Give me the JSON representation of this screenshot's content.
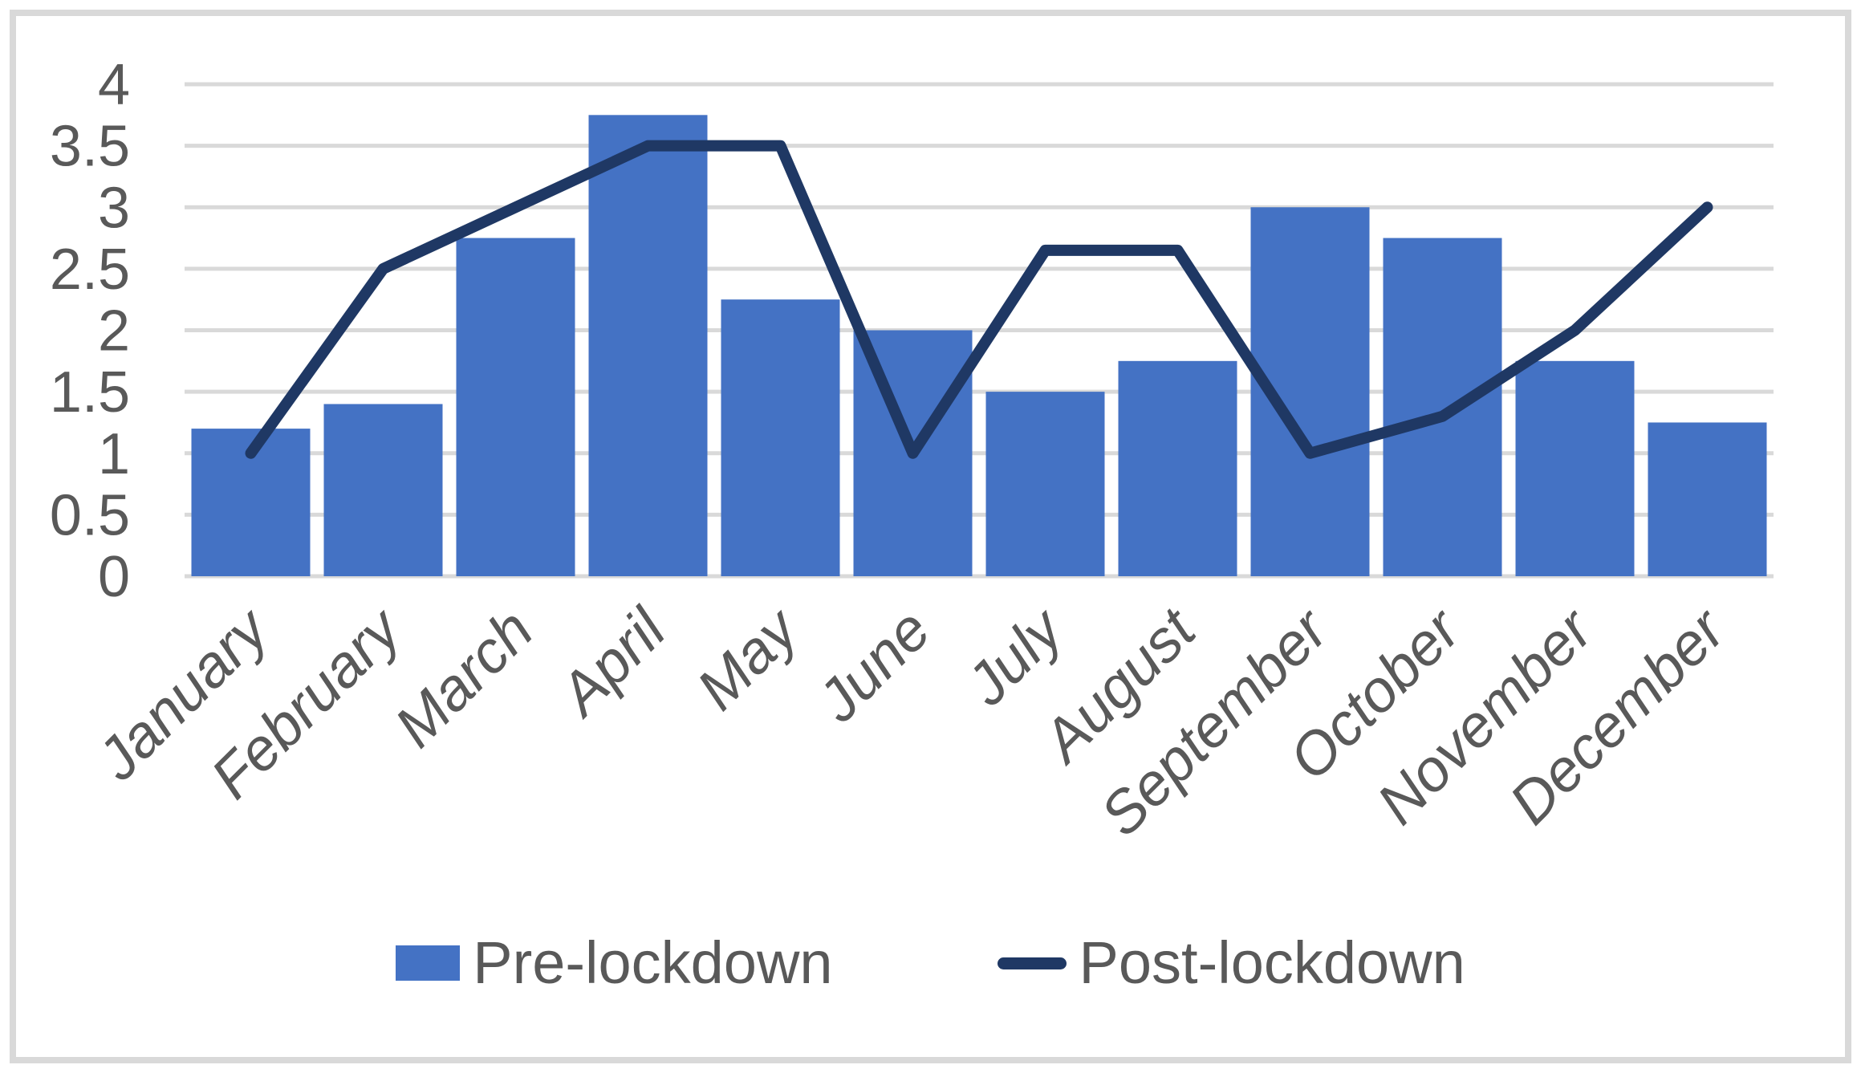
{
  "chart_data": {
    "type": "bar",
    "subtype": "bar-line-combo",
    "title": "",
    "xlabel": "",
    "ylabel": "",
    "categories": [
      "January",
      "February",
      "March",
      "April",
      "May",
      "June",
      "July",
      "August",
      "September",
      "October",
      "November",
      "December"
    ],
    "series": [
      {
        "name": "Pre-lockdown",
        "type": "bar",
        "color": "#4472C4",
        "values": [
          1.2,
          1.4,
          2.75,
          3.75,
          2.25,
          2.0,
          1.5,
          1.75,
          3.0,
          2.75,
          1.75,
          1.25
        ]
      },
      {
        "name": "Post-lockdown",
        "type": "line",
        "color": "#1F3864",
        "values": [
          1.0,
          2.5,
          3.0,
          3.5,
          3.5,
          1.0,
          2.65,
          2.65,
          1.0,
          1.3,
          2.0,
          3.0
        ]
      }
    ],
    "ylim": [
      0,
      4
    ],
    "ytick_step": 0.5,
    "yticks": [
      "0",
      "0.5",
      "1",
      "1.5",
      "2",
      "2.5",
      "3",
      "3.5",
      "4"
    ],
    "grid": true,
    "legend_position": "bottom"
  },
  "colors": {
    "bar_fill": "#4472C4",
    "line_stroke": "#1F3864",
    "axis_text": "#595959",
    "gridline": "#D9D9D9",
    "frame_border": "#D9D9D9",
    "background": "#FFFFFF"
  }
}
